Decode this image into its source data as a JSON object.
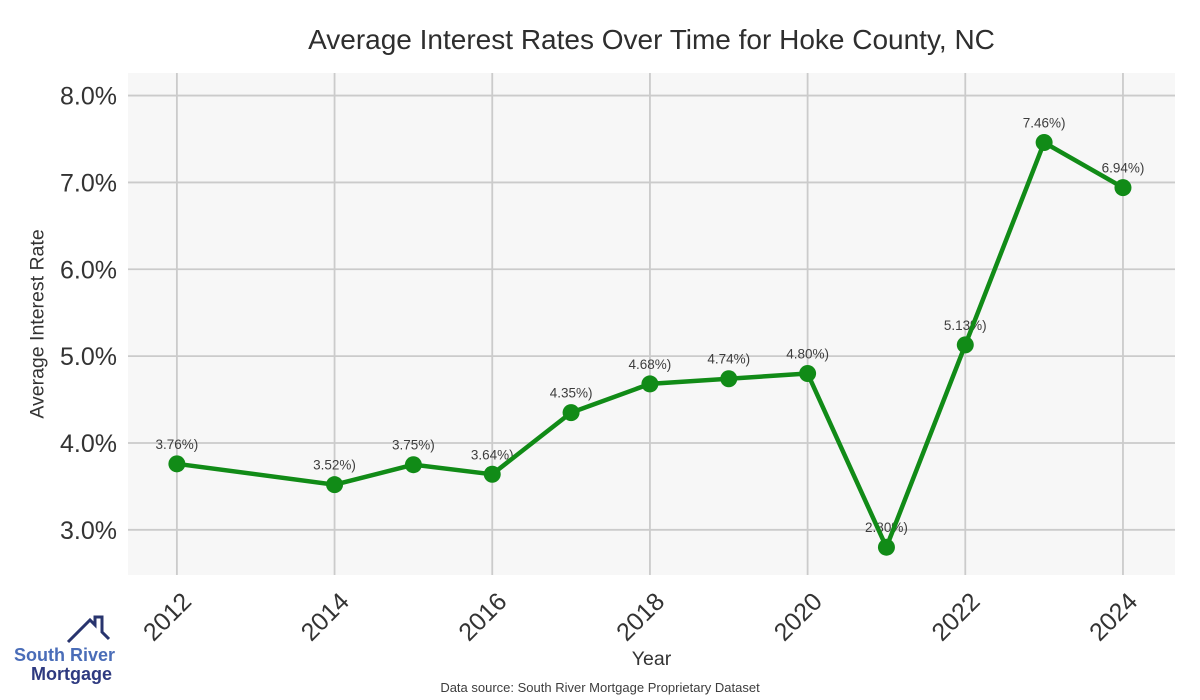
{
  "title": "Average Interest Rates Over Time for Hoke County, NC",
  "source_note": "Data source: South River Mortgage Proprietary Dataset",
  "logo": {
    "line1": "South River",
    "line2": "Mortgage",
    "line1_color": "#4a6db8",
    "line2_color": "#2e3a80",
    "roof_color": "#28346e"
  },
  "chart_data": {
    "type": "line",
    "title": "Average Interest Rates Over Time for Hoke County, NC",
    "xlabel": "Year",
    "ylabel": "Average Interest Rate",
    "x": [
      2012,
      2014,
      2015,
      2016,
      2017,
      2018,
      2019,
      2020,
      2021,
      2022,
      2023,
      2024
    ],
    "values": [
      3.76,
      3.52,
      3.75,
      3.64,
      4.35,
      4.68,
      4.74,
      4.8,
      2.8,
      5.13,
      7.46,
      6.94
    ],
    "point_labels": [
      "3.76%)",
      "3.52%)",
      "3.75%)",
      "3.64%)",
      "4.35%)",
      "4.68%)",
      "4.74%)",
      "4.80%)",
      "2.80%)",
      "5.13%)",
      "7.46%)",
      "6.94%)"
    ],
    "xticks": [
      2012,
      2014,
      2016,
      2018,
      2020,
      2022,
      2024
    ],
    "xtick_labels": [
      "2012",
      "2014",
      "2016",
      "2018",
      "2020",
      "2022",
      "2024"
    ],
    "yticks": [
      3,
      4,
      5,
      6,
      7,
      8
    ],
    "ytick_labels": [
      "3.0%",
      "4.0%",
      "5.0%",
      "6.0%",
      "7.0%",
      "8.0%"
    ],
    "xlim": [
      2011.38,
      2024.66
    ],
    "ylim": [
      2.48,
      8.26
    ],
    "grid": true,
    "legend": "none",
    "line_color": "#118b17",
    "marker_color": "#118b17",
    "plot_bg_color": "#f7f7f7",
    "grid_color": "#cbcbcb"
  }
}
